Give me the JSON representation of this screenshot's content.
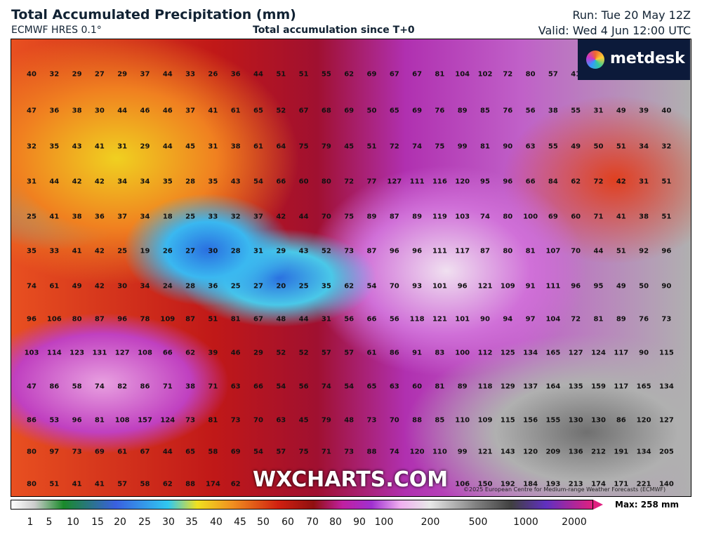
{
  "header": {
    "title": "Total Accumulated Precipitation (mm)",
    "model": "ECMWF HRES 0.1°",
    "subtitle": "Total accumulation since T+0",
    "run": "Run: Tue 20 May 12Z",
    "valid": "Valid: Wed 4 Jun 12:00 UTC"
  },
  "logo": "metdesk",
  "grid": {
    "rows": [
      [
        40,
        32,
        29,
        27,
        29,
        37,
        44,
        33,
        26,
        36,
        44,
        51,
        51,
        55,
        62,
        69,
        67,
        67,
        81,
        104,
        102,
        72,
        80,
        57,
        41,
        null,
        null,
        null,
        null
      ],
      [
        47,
        36,
        38,
        30,
        44,
        46,
        46,
        37,
        41,
        61,
        65,
        52,
        67,
        68,
        69,
        50,
        65,
        69,
        76,
        89,
        85,
        76,
        56,
        38,
        55,
        31,
        49,
        39,
        40
      ],
      [
        32,
        35,
        43,
        41,
        31,
        29,
        44,
        45,
        31,
        38,
        61,
        64,
        75,
        79,
        45,
        51,
        72,
        74,
        75,
        99,
        81,
        90,
        63,
        55,
        49,
        50,
        51,
        34,
        32
      ],
      [
        31,
        44,
        42,
        42,
        34,
        34,
        35,
        28,
        35,
        43,
        54,
        66,
        60,
        80,
        72,
        77,
        127,
        111,
        116,
        120,
        95,
        96,
        66,
        84,
        62,
        72,
        42,
        31,
        51
      ],
      [
        25,
        41,
        38,
        36,
        37,
        34,
        18,
        25,
        33,
        32,
        37,
        42,
        44,
        70,
        75,
        89,
        87,
        89,
        119,
        103,
        74,
        80,
        100,
        69,
        60,
        71,
        41,
        38,
        51
      ],
      [
        35,
        33,
        41,
        42,
        25,
        19,
        26,
        27,
        30,
        28,
        31,
        29,
        43,
        52,
        73,
        87,
        96,
        96,
        111,
        117,
        87,
        80,
        81,
        107,
        70,
        44,
        51,
        92,
        96
      ],
      [
        74,
        61,
        49,
        42,
        30,
        34,
        24,
        28,
        36,
        25,
        27,
        20,
        25,
        35,
        62,
        54,
        70,
        93,
        101,
        96,
        121,
        109,
        91,
        111,
        96,
        95,
        49,
        50,
        90
      ],
      [
        96,
        106,
        80,
        87,
        96,
        78,
        109,
        87,
        51,
        81,
        67,
        48,
        44,
        31,
        56,
        66,
        56,
        118,
        121,
        101,
        90,
        94,
        97,
        104,
        72,
        81,
        89,
        76,
        73
      ],
      [
        103,
        114,
        123,
        131,
        127,
        108,
        66,
        62,
        39,
        46,
        29,
        52,
        52,
        57,
        57,
        61,
        86,
        91,
        83,
        100,
        112,
        125,
        134,
        165,
        127,
        124,
        117,
        90,
        115
      ],
      [
        47,
        86,
        58,
        74,
        82,
        86,
        71,
        38,
        71,
        63,
        66,
        54,
        56,
        74,
        54,
        65,
        63,
        60,
        81,
        89,
        118,
        129,
        137,
        164,
        135,
        159,
        117,
        165,
        134
      ],
      [
        86,
        53,
        96,
        81,
        108,
        157,
        124,
        73,
        81,
        73,
        70,
        63,
        45,
        79,
        48,
        73,
        70,
        88,
        85,
        110,
        109,
        115,
        156,
        155,
        130,
        130,
        86,
        120,
        127
      ],
      [
        80,
        97,
        73,
        69,
        61,
        67,
        44,
        65,
        58,
        69,
        54,
        57,
        75,
        71,
        73,
        88,
        74,
        120,
        110,
        99,
        121,
        143,
        120,
        209,
        136,
        212,
        191,
        134,
        205
      ],
      [
        80,
        51,
        41,
        41,
        57,
        58,
        62,
        88,
        174,
        62,
        null,
        null,
        null,
        null,
        null,
        null,
        null,
        null,
        null,
        106,
        150,
        192,
        184,
        193,
        213,
        174,
        171,
        221,
        140
      ]
    ]
  },
  "colorbar": {
    "labels": [
      1,
      5,
      10,
      15,
      20,
      25,
      30,
      35,
      40,
      45,
      50,
      60,
      70,
      80,
      90,
      100,
      200,
      500,
      1000,
      2000
    ],
    "max": "Max: 258 mm"
  },
  "watermark": "WXCHARTS.COM",
  "copyright": "©2025 European Centre for Medium-range Weather Forecasts (ECMWF)"
}
